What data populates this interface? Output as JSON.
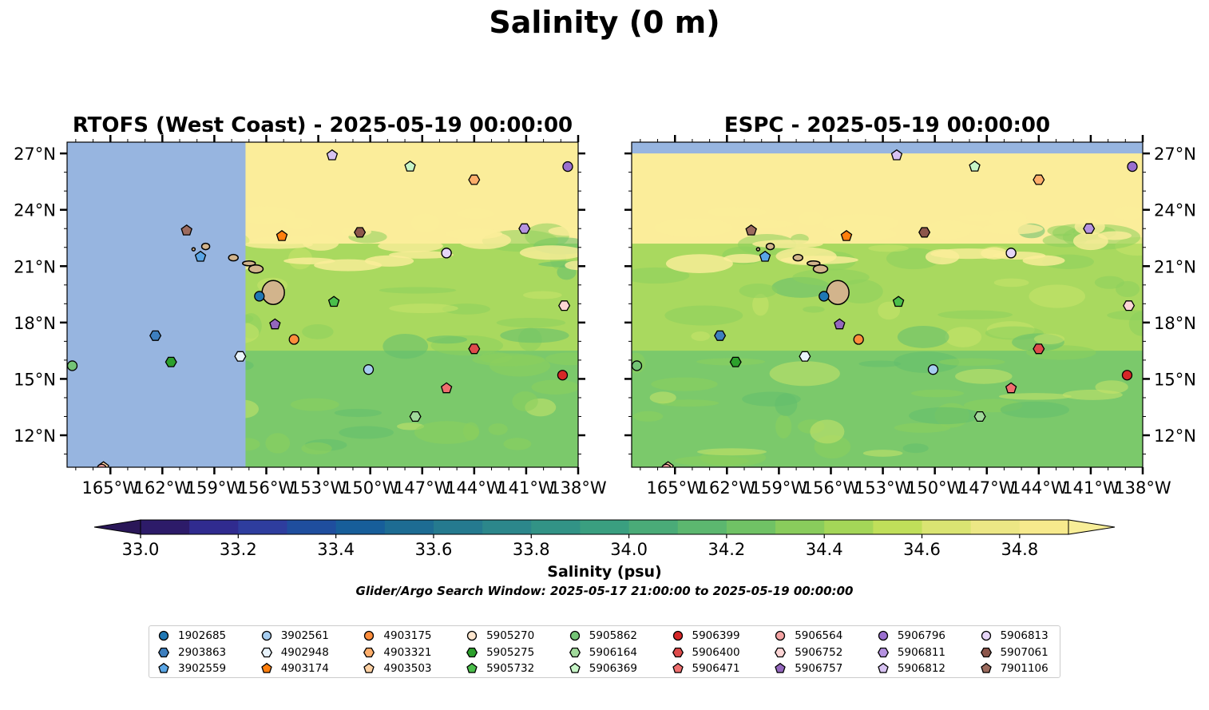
{
  "title": "Salinity (0 m)",
  "panels": [
    {
      "title": "RTOFS (West Coast) - 2025-05-19 00:00:00"
    },
    {
      "title": "ESPC - 2025-05-19 00:00:00"
    }
  ],
  "colorbar": {
    "label": "Salinity (psu)",
    "ticks": [
      "33.0",
      "33.2",
      "33.4",
      "33.6",
      "33.8",
      "34.0",
      "34.2",
      "34.4",
      "34.6",
      "34.8"
    ],
    "range": [
      33.0,
      34.9
    ]
  },
  "search_window": "Glider/Argo Search Window: 2025-05-17 21:00:00 to 2025-05-19 00:00:00",
  "chart_data": {
    "type": "scatter",
    "title": "Salinity (0 m)",
    "xlabel": "",
    "ylabel": "",
    "x_ticks": [
      "165°W",
      "162°W",
      "159°W",
      "156°W",
      "153°W",
      "150°W",
      "147°W",
      "144°W",
      "141°W",
      "138°W"
    ],
    "y_ticks": [
      "12°N",
      "15°N",
      "18°N",
      "21°N",
      "24°N",
      "27°N"
    ],
    "xlim": [
      -167.5,
      -138
    ],
    "ylim": [
      10.3,
      27.6
    ],
    "legend_position": "bottom-center",
    "series": [
      {
        "name": "1902685",
        "marker": "circle",
        "color": "#1f77b4",
        "lon": -156.4,
        "lat": 19.4
      },
      {
        "name": "2903863",
        "marker": "hexagon",
        "color": "#3e7fbe",
        "lon": -162.4,
        "lat": 17.3
      },
      {
        "name": "3902559",
        "marker": "pentagon",
        "color": "#5aa6e6",
        "lon": -159.8,
        "lat": 21.5
      },
      {
        "name": "3902561",
        "marker": "circle",
        "color": "#a6cdf0",
        "lon": -150.1,
        "lat": 15.5
      },
      {
        "name": "4902948",
        "marker": "hexagon",
        "color": "#e8f3fc",
        "lon": -157.5,
        "lat": 16.2
      },
      {
        "name": "4903174",
        "marker": "pentagon",
        "color": "#ff7f0e",
        "lon": -155.1,
        "lat": 22.6
      },
      {
        "name": "4903175",
        "marker": "circle",
        "color": "#fd8d3c",
        "lon": -154.4,
        "lat": 17.1
      },
      {
        "name": "4903321",
        "marker": "hexagon",
        "color": "#fdae6b",
        "lon": -144.0,
        "lat": 25.6
      },
      {
        "name": "4903503",
        "marker": "pentagon",
        "color": "#fdd0a2",
        "lon": -165.4,
        "lat": 10.3
      },
      {
        "name": "5905270",
        "marker": "circle",
        "color": "#fee6ce",
        "lon": -145.6,
        "lat": 21.7
      },
      {
        "name": "5905275",
        "marker": "hexagon",
        "color": "#2ca02c",
        "lon": -161.5,
        "lat": 15.9
      },
      {
        "name": "5905732",
        "marker": "pentagon",
        "color": "#4bbf4b",
        "lon": -152.1,
        "lat": 19.1
      },
      {
        "name": "5905862",
        "marker": "circle",
        "color": "#74c476",
        "lon": -167.2,
        "lat": 15.7
      },
      {
        "name": "5906164",
        "marker": "hexagon",
        "color": "#a1d99b",
        "lon": -147.4,
        "lat": 13.0
      },
      {
        "name": "5906369",
        "marker": "pentagon",
        "color": "#c7f5c7",
        "lon": -147.7,
        "lat": 26.3
      },
      {
        "name": "5906399",
        "marker": "circle",
        "color": "#d62728",
        "lon": -138.9,
        "lat": 15.2
      },
      {
        "name": "5906400",
        "marker": "hexagon",
        "color": "#de4b4b",
        "lon": -144.0,
        "lat": 16.6
      },
      {
        "name": "5906471",
        "marker": "pentagon",
        "color": "#ef6f6f",
        "lon": -145.6,
        "lat": 14.5
      },
      {
        "name": "5906564",
        "marker": "circle",
        "color": "#f4a3a3",
        "lon": -165.5,
        "lat": 10.2
      },
      {
        "name": "5906752",
        "marker": "hexagon",
        "color": "#fcd5d5",
        "lon": -138.8,
        "lat": 18.9
      },
      {
        "name": "5906757",
        "marker": "pentagon",
        "color": "#9467bd",
        "lon": -155.5,
        "lat": 17.9
      },
      {
        "name": "5906796",
        "marker": "circle",
        "color": "#9a6fcf",
        "lon": -138.6,
        "lat": 26.3
      },
      {
        "name": "5906811",
        "marker": "hexagon",
        "color": "#b592e0",
        "lon": -141.1,
        "lat": 23.0
      },
      {
        "name": "5906812",
        "marker": "pentagon",
        "color": "#d7c2f2",
        "lon": -152.2,
        "lat": 26.9
      },
      {
        "name": "5906813",
        "marker": "circle",
        "color": "#e6d5f7",
        "lon": -145.6,
        "lat": 21.7
      },
      {
        "name": "5907061",
        "marker": "hexagon",
        "color": "#8c564b",
        "lon": -150.6,
        "lat": 22.8
      },
      {
        "name": "7901106",
        "marker": "pentagon",
        "color": "#9c6b5e",
        "lon": -160.6,
        "lat": 22.9
      }
    ]
  },
  "colors": {
    "land": "#d2b48c",
    "no_data": "#97b5e0",
    "salinity_high": "#fbed9a",
    "salinity_mid": "#a9d95f",
    "salinity_low": "#6cc36f"
  }
}
